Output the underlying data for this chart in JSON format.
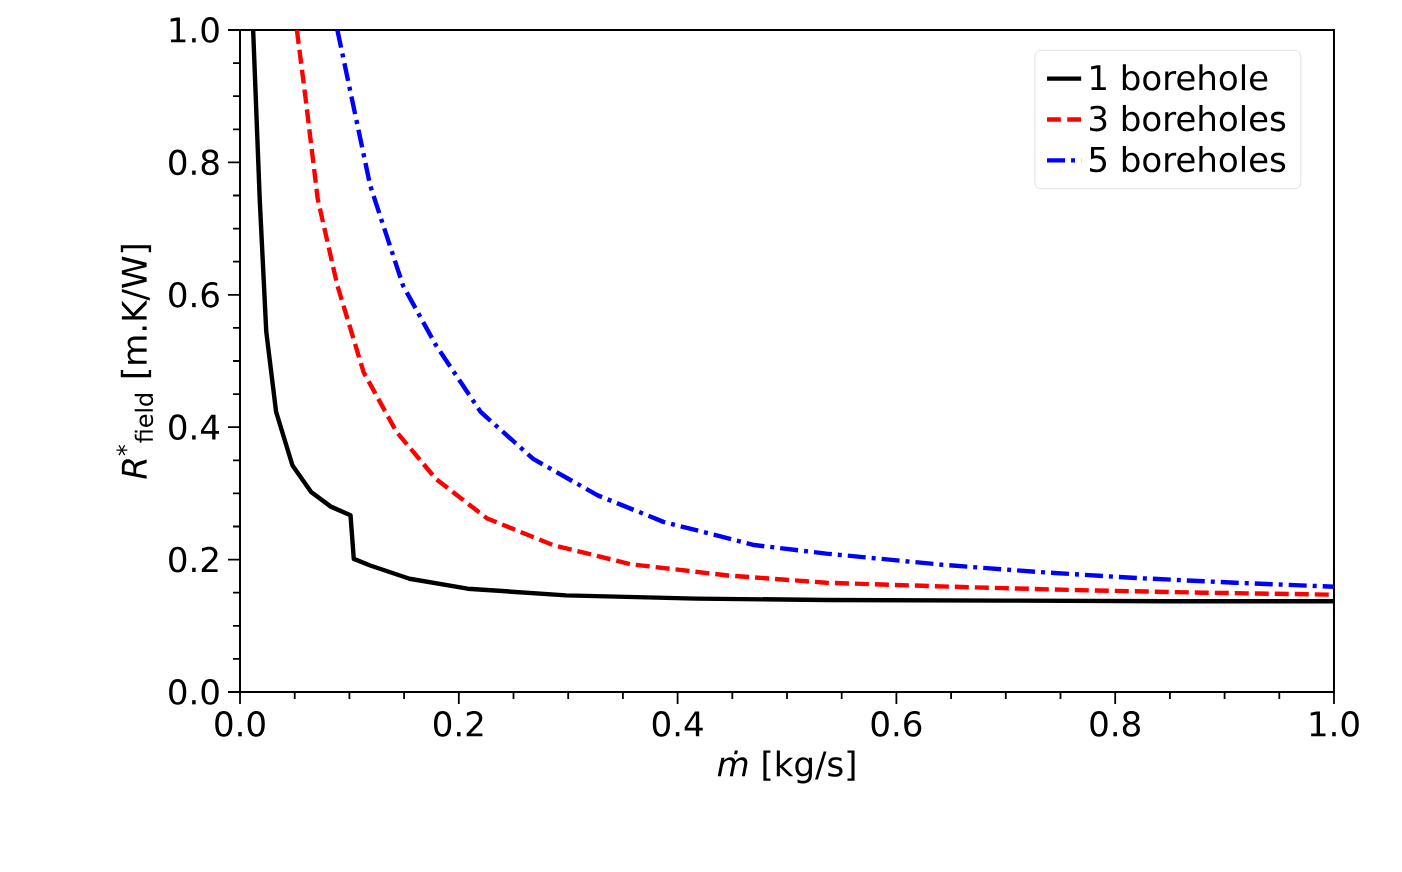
{
  "chart_data": {
    "type": "line",
    "xlabel": "*ṁ* [kg/s]",
    "ylabel": "*R*$^{*}$$_{field}$ [m.K/W]",
    "xlim": [
      0,
      1
    ],
    "ylim": [
      0,
      1
    ],
    "xticks": [
      {
        "value": 0,
        "label": "0.0"
      },
      {
        "value": 0.2,
        "label": "0.2"
      },
      {
        "value": 0.4,
        "label": "0.4"
      },
      {
        "value": 0.6,
        "label": "0.6"
      },
      {
        "value": 0.8,
        "label": "0.8"
      },
      {
        "value": 1,
        "label": "1.0"
      }
    ],
    "yticks": [
      {
        "value": 0,
        "label": "0.0"
      },
      {
        "value": 0.2,
        "label": "0.2"
      },
      {
        "value": 0.4,
        "label": "0.4"
      },
      {
        "value": 0.6,
        "label": "0.6"
      },
      {
        "value": 0.8,
        "label": "0.8"
      },
      {
        "value": 1,
        "label": "1.0"
      }
    ],
    "grid": false,
    "legend": "top right",
    "marker": "none",
    "series": [
      {
        "name": "1 borehole",
        "color": "#000000",
        "line_style": "solid",
        "x": [
          0.012,
          0.018,
          0.024,
          0.033,
          0.048,
          0.065,
          0.083,
          0.101,
          0.104,
          0.119,
          0.155,
          0.208,
          0.298,
          0.417,
          0.536,
          0.7,
          0.85,
          1.0
        ],
        "values": [
          1.0,
          0.745,
          0.544,
          0.423,
          0.342,
          0.302,
          0.28,
          0.267,
          0.201,
          0.191,
          0.171,
          0.156,
          0.146,
          0.141,
          0.139,
          0.138,
          0.137,
          0.137
        ]
      },
      {
        "name": "3 boreholes",
        "color": "#ff0000",
        "line_style": "dashed",
        "x": [
          0.052,
          0.06,
          0.071,
          0.089,
          0.113,
          0.143,
          0.179,
          0.226,
          0.286,
          0.357,
          0.446,
          0.536,
          0.65,
          0.762,
          0.88,
          1.0
        ],
        "values": [
          1.0,
          0.896,
          0.745,
          0.614,
          0.483,
          0.393,
          0.322,
          0.262,
          0.222,
          0.193,
          0.176,
          0.165,
          0.159,
          0.154,
          0.15,
          0.147
        ]
      },
      {
        "name": "5 boreholes",
        "color": "#0000ff",
        "line_style": "dashdot",
        "x": [
          0.089,
          0.119,
          0.149,
          0.179,
          0.22,
          0.268,
          0.327,
          0.387,
          0.47,
          0.536,
          0.643,
          0.732,
          0.821,
          0.91,
          1.0
        ],
        "values": [
          1.0,
          0.765,
          0.614,
          0.524,
          0.423,
          0.352,
          0.297,
          0.257,
          0.222,
          0.209,
          0.192,
          0.181,
          0.172,
          0.165,
          0.159
        ]
      }
    ]
  }
}
